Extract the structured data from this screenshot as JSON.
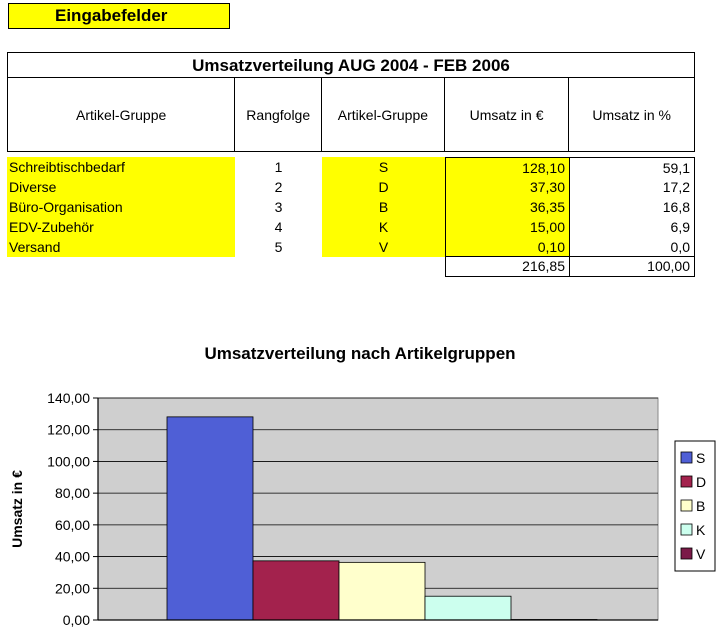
{
  "legend_label": "Eingabefelder",
  "table": {
    "title": "Umsatzverteilung AUG 2004 - FEB 2006",
    "headers": [
      "Artikel-Gruppe",
      "Rangfolge",
      "Artikel-Gruppe",
      "Umsatz in €",
      "Umsatz in %"
    ],
    "rows": [
      {
        "name": "Schreibtischbedarf",
        "rank": "1",
        "code": "S",
        "umsatz": "128,10",
        "pct": "59,1"
      },
      {
        "name": "Diverse",
        "rank": "2",
        "code": "D",
        "umsatz": "37,30",
        "pct": "17,2"
      },
      {
        "name": "Büro-Organisation",
        "rank": "3",
        "code": "B",
        "umsatz": "36,35",
        "pct": "16,8"
      },
      {
        "name": "EDV-Zubehör",
        "rank": "4",
        "code": "K",
        "umsatz": "15,00",
        "pct": "6,9"
      },
      {
        "name": "Versand",
        "rank": "5",
        "code": "V",
        "umsatz": "0,10",
        "pct": "0,0"
      }
    ],
    "total_umsatz": "216,85",
    "total_pct": "100,00"
  },
  "chart_data": {
    "type": "bar",
    "title": "Umsatzverteilung nach Artikelgruppen",
    "ylabel": "Umsatz in €",
    "xlabel": "",
    "ylim": [
      0,
      140
    ],
    "yticks": [
      "0,00",
      "20,00",
      "40,00",
      "60,00",
      "80,00",
      "100,00",
      "120,00",
      "140,00"
    ],
    "grid": true,
    "legend_position": "right",
    "series": [
      {
        "name": "S",
        "value": 128.1,
        "color": "#4f5fd6"
      },
      {
        "name": "D",
        "value": 37.3,
        "color": "#a3224d"
      },
      {
        "name": "B",
        "value": 36.35,
        "color": "#ffffcc"
      },
      {
        "name": "K",
        "value": 15.0,
        "color": "#ccffee"
      },
      {
        "name": "V",
        "value": 0.1,
        "color": "#7b1a48"
      }
    ],
    "plot_background": "#cfcfcf"
  }
}
